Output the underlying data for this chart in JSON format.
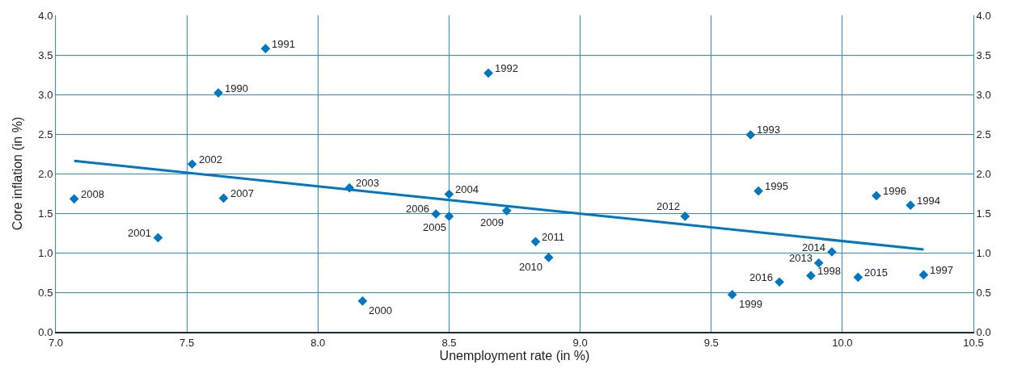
{
  "chart_data": {
    "type": "scatter",
    "xlabel": "Unemployment rate (in %)",
    "ylabel": "Core inflation (in %)",
    "xlim": [
      7.0,
      10.5
    ],
    "xticks": [
      {
        "value": 7,
        "label": "7.0"
      },
      {
        "value": 7.5,
        "label": "7.5"
      },
      {
        "value": 8,
        "label": "8.0"
      },
      {
        "value": 8.5,
        "label": "8.5"
      },
      {
        "value": 9,
        "label": "9.0"
      },
      {
        "value": 9.5,
        "label": "9.5"
      },
      {
        "value": 10,
        "label": "10.0"
      },
      {
        "value": 10.5,
        "label": "10.5"
      }
    ],
    "ylim": [
      0,
      4
    ],
    "yticks": [
      {
        "value": 0,
        "label": "0.0"
      },
      {
        "value": 0.5,
        "label": "0.5"
      },
      {
        "value": 1,
        "label": "1.0"
      },
      {
        "value": 1.5,
        "label": "1.5"
      },
      {
        "value": 2,
        "label": "2.0"
      },
      {
        "value": 2.5,
        "label": "2.5"
      },
      {
        "value": 3,
        "label": "3.0"
      },
      {
        "value": 3.5,
        "label": "3.5"
      },
      {
        "value": 4,
        "label": "4.0"
      }
    ],
    "y2lim": [
      0,
      4
    ],
    "y2ticks": [
      {
        "value": 0,
        "label": "0.0"
      },
      {
        "value": 0.5,
        "label": "0.5"
      },
      {
        "value": 1,
        "label": "1.0"
      },
      {
        "value": 1.5,
        "label": "1.5"
      },
      {
        "value": 2,
        "label": "2.0"
      },
      {
        "value": 2.5,
        "label": "2.5"
      },
      {
        "value": 3,
        "label": "3.0"
      },
      {
        "value": 3.5,
        "label": "3.5"
      },
      {
        "value": 4,
        "label": "4.0"
      }
    ],
    "grid": true,
    "marker": "diamond",
    "series": [
      {
        "type": "scatter",
        "color": "#0077c0",
        "x": [
          7.62,
          7.8,
          8.65,
          9.65,
          10.26,
          9.68,
          10.13,
          10.31,
          9.88,
          9.58,
          8.17,
          7.39,
          7.52,
          8.12,
          8.5,
          8.5,
          8.45,
          7.64,
          7.07,
          8.72,
          8.88,
          8.83,
          9.4,
          9.91,
          9.96,
          10.06,
          9.76
        ],
        "values": [
          3.02,
          3.58,
          3.27,
          2.49,
          1.6,
          1.78,
          1.72,
          0.72,
          0.71,
          0.47,
          0.39,
          1.19,
          2.12,
          1.82,
          1.74,
          1.46,
          1.49,
          1.69,
          1.68,
          1.53,
          0.94,
          1.14,
          1.46,
          0.87,
          1.01,
          0.69,
          0.63
        ]
      },
      {
        "type": "line",
        "color": "#0077c0",
        "marker": "none",
        "x": [
          7.07,
          10.31
        ],
        "values": [
          2.16,
          1.04
        ]
      }
    ],
    "annotations": [
      {
        "text": "1990",
        "x": 7.62,
        "y": 3.02
      },
      {
        "text": "1991",
        "x": 7.8,
        "y": 3.58
      },
      {
        "text": "1992",
        "x": 8.65,
        "y": 3.27
      },
      {
        "text": "1993",
        "x": 9.65,
        "y": 2.49
      },
      {
        "text": "1994",
        "x": 10.26,
        "y": 1.6
      },
      {
        "text": "1995",
        "x": 9.68,
        "y": 1.78
      },
      {
        "text": "1996",
        "x": 10.13,
        "y": 1.72
      },
      {
        "text": "1997",
        "x": 10.31,
        "y": 0.72
      },
      {
        "text": "1998",
        "x": 9.88,
        "y": 0.71
      },
      {
        "text": "1999",
        "x": 9.58,
        "y": 0.47
      },
      {
        "text": "2000",
        "x": 8.17,
        "y": 0.39
      },
      {
        "text": "2001",
        "x": 7.39,
        "y": 1.19
      },
      {
        "text": "2002",
        "x": 7.52,
        "y": 2.12
      },
      {
        "text": "2003",
        "x": 8.12,
        "y": 1.82
      },
      {
        "text": "2004",
        "x": 8.5,
        "y": 1.74
      },
      {
        "text": "2005",
        "x": 8.5,
        "y": 1.46
      },
      {
        "text": "2006",
        "x": 8.45,
        "y": 1.49
      },
      {
        "text": "2007",
        "x": 7.64,
        "y": 1.69
      },
      {
        "text": "2008",
        "x": 7.07,
        "y": 1.68
      },
      {
        "text": "2009",
        "x": 8.72,
        "y": 1.53
      },
      {
        "text": "2010",
        "x": 8.88,
        "y": 0.94
      },
      {
        "text": "2011",
        "x": 8.83,
        "y": 1.14
      },
      {
        "text": "2012",
        "x": 9.4,
        "y": 1.46
      },
      {
        "text": "2013",
        "x": 9.91,
        "y": 0.87
      },
      {
        "text": "2014",
        "x": 9.96,
        "y": 1.01
      },
      {
        "text": "2015",
        "x": 10.06,
        "y": 0.69
      },
      {
        "text": "2016",
        "x": 9.76,
        "y": 0.63
      }
    ]
  }
}
